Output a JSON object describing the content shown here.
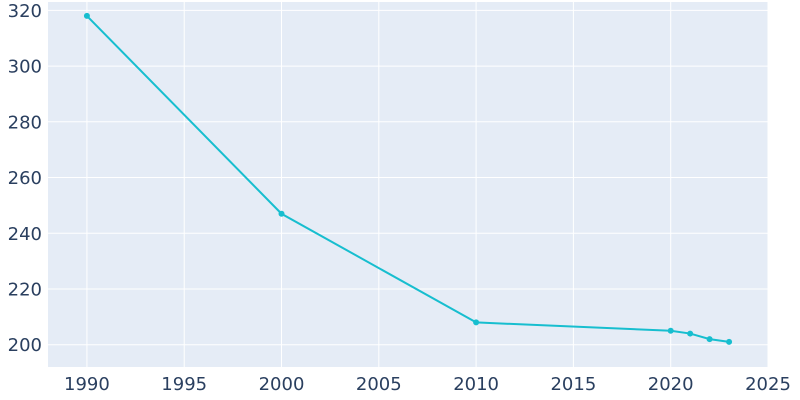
{
  "chart_data": {
    "type": "line",
    "title": "",
    "xlabel": "",
    "ylabel": "",
    "x": [
      1990,
      2000,
      2010,
      2020,
      2021,
      2022,
      2023
    ],
    "series": [
      {
        "values": [
          318,
          247,
          208,
          205,
          204,
          202,
          201
        ]
      }
    ],
    "xlim": [
      1988,
      2025
    ],
    "ylim": [
      192,
      323
    ],
    "xticks": [
      1990,
      1995,
      2000,
      2005,
      2010,
      2015,
      2020,
      2025
    ],
    "yticks": [
      200,
      220,
      240,
      260,
      280,
      300,
      320
    ],
    "grid": true,
    "legend": "none",
    "colors": {
      "line": "#17becf",
      "plot_background": "#e5ecf6",
      "grid": "#ffffff",
      "tick_text": "#2a3f5f"
    }
  }
}
